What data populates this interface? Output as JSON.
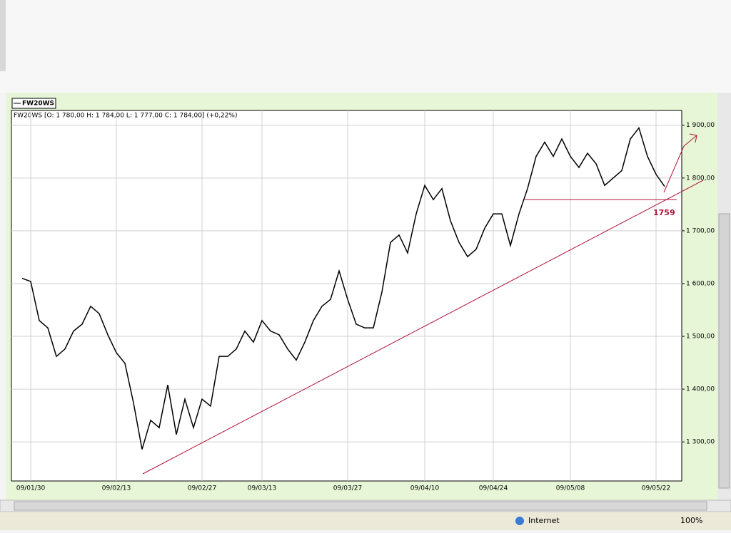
{
  "chart_data": {
    "type": "line",
    "legend": "FW20WS",
    "subtitle": "FW20WS [O: 1 780,00  H: 1 784,00  L: 1 777,00  C: 1 784,00] (+0,22%)",
    "categories": [
      null,
      "09/01/30",
      null,
      null,
      null,
      null,
      null,
      null,
      null,
      null,
      null,
      "09/02/13",
      null,
      null,
      null,
      null,
      null,
      null,
      null,
      null,
      null,
      "09/02/27",
      null,
      null,
      null,
      null,
      null,
      null,
      "09/03/13",
      null,
      null,
      null,
      null,
      null,
      null,
      null,
      null,
      null,
      "09/03/27",
      null,
      null,
      null,
      null,
      null,
      null,
      null,
      null,
      "09/04/10",
      null,
      null,
      null,
      null,
      null,
      null,
      null,
      "09/04/24",
      null,
      null,
      null,
      null,
      null,
      null,
      null,
      null,
      "09/05/08",
      null,
      null,
      null,
      null,
      null,
      null,
      null,
      null,
      null,
      "09/05/22",
      null
    ],
    "series": [
      {
        "name": "FW20WS",
        "color": "#000000",
        "values": [
          1610,
          1604,
          1530,
          1516,
          1462,
          1476,
          1510,
          1523,
          1557,
          1543,
          1503,
          1469,
          1449,
          1374,
          1286,
          1341,
          1327,
          1408,
          1314,
          1381,
          1327,
          1381,
          1368,
          1462,
          1462,
          1476,
          1510,
          1489,
          1530,
          1510,
          1503,
          1476,
          1455,
          1489,
          1530,
          1557,
          1570,
          1624,
          1570,
          1523,
          1516,
          1516,
          1584,
          1678,
          1692,
          1658,
          1732,
          1786,
          1759,
          1780,
          1719,
          1678,
          1651,
          1665,
          1705,
          1732,
          1732,
          1672,
          1732,
          1780,
          1841,
          1868,
          1841,
          1874,
          1841,
          1820,
          1847,
          1827,
          1786,
          1800,
          1814,
          1874,
          1895,
          1841,
          1807,
          1784
        ]
      }
    ],
    "ylim": [
      1226,
      1928
    ],
    "yticks": [
      {
        "value": 1300,
        "label": "1 300,00"
      },
      {
        "value": 1400,
        "label": "1 400,00"
      },
      {
        "value": 1500,
        "label": "1 500,00"
      },
      {
        "value": 1600,
        "label": "1 600,00"
      },
      {
        "value": 1700,
        "label": "1 700,00"
      },
      {
        "value": 1800,
        "label": "1 800,00"
      },
      {
        "value": 1900,
        "label": "1 900,00"
      }
    ],
    "grid": true,
    "support_level": 1759,
    "annotation_color": "#b0103a"
  },
  "browser": {
    "status_zone": "Internet",
    "zoom": "100%"
  }
}
